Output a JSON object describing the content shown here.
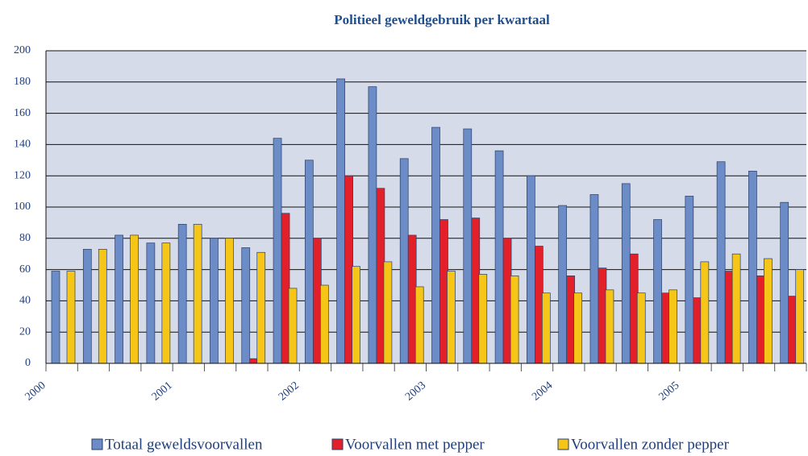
{
  "chart_data": {
    "type": "bar",
    "title": "Politieel geweldgebruik per kwartaal",
    "categories": [
      "2000",
      null,
      null,
      null,
      "2001",
      null,
      null,
      null,
      "2002",
      null,
      null,
      null,
      "2003",
      null,
      null,
      null,
      "2004",
      null,
      null,
      null,
      "2005",
      null,
      null,
      null
    ],
    "series": [
      {
        "name": "Totaal geweldsvoorvallen",
        "color": "#6b8cc7",
        "values": [
          59,
          73,
          82,
          77,
          89,
          80,
          74,
          144,
          130,
          182,
          177,
          131,
          151,
          150,
          136,
          120,
          101,
          108,
          115,
          92,
          107,
          129,
          123,
          103
        ]
      },
      {
        "name": "Voorvallen met pepper",
        "color": "#e3202a",
        "values": [
          null,
          null,
          null,
          null,
          null,
          null,
          3,
          96,
          80,
          120,
          112,
          82,
          92,
          93,
          80,
          75,
          56,
          61,
          70,
          45,
          42,
          59,
          56,
          43
        ]
      },
      {
        "name": "Voorvallen zonder pepper",
        "color": "#f5c518",
        "values": [
          59,
          73,
          82,
          77,
          89,
          80,
          71,
          48,
          50,
          62,
          65,
          49,
          59,
          57,
          56,
          45,
          45,
          47,
          45,
          47,
          65,
          70,
          67,
          60
        ]
      }
    ],
    "ylim": [
      0,
      200
    ],
    "yticks": [
      0,
      20,
      40,
      60,
      80,
      100,
      120,
      140,
      160,
      180,
      200
    ],
    "grid": true
  }
}
